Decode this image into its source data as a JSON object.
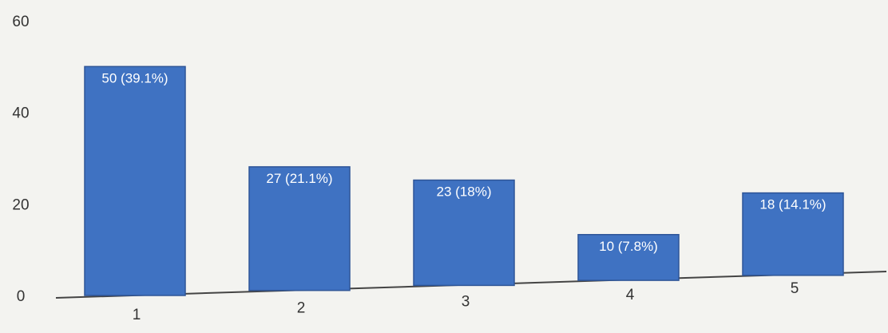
{
  "chart_data": {
    "type": "bar",
    "categories": [
      "1",
      "2",
      "3",
      "4",
      "5"
    ],
    "values": [
      50,
      27,
      23,
      10,
      18
    ],
    "data_labels": [
      "50 (39.1%)",
      "27 (21.1%)",
      "23 (18%)",
      "10 (7.8%)",
      "18 (14.1%)"
    ],
    "yticks": [
      "0",
      "20",
      "40",
      "60"
    ],
    "ylim": [
      0,
      60
    ],
    "title": "",
    "xlabel": "",
    "ylabel": "",
    "grid": false,
    "colors": {
      "bar": "#3f72c2",
      "bar_edge": "#2e5597",
      "axis": "#444444"
    }
  }
}
